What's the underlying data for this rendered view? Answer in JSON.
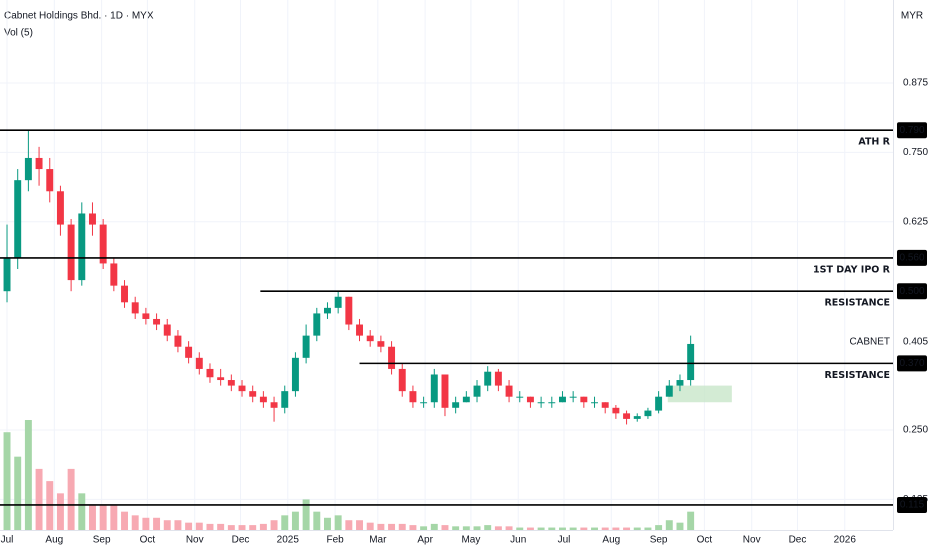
{
  "chart_data": {
    "type": "candlestick",
    "title": "Cabnet Holdings Bhd. · 1D · MYX",
    "subtitle": "Vol (5)",
    "currency": "MYR",
    "colors": {
      "up": "#089981",
      "down": "#f23645",
      "up_volume": "#a5d6a7",
      "down_volume": "#f7a9b2"
    },
    "x": [
      0,
      7,
      14,
      21,
      28,
      35,
      42,
      49,
      56,
      63,
      70,
      77,
      84,
      91,
      98,
      105,
      112,
      119,
      126,
      133,
      140,
      147,
      154,
      161,
      168,
      175,
      182,
      189,
      196,
      203,
      210,
      217,
      224,
      231,
      238,
      245,
      252,
      259,
      266,
      273,
      280,
      287,
      294,
      301,
      308,
      315,
      322,
      329,
      336,
      343,
      350,
      357,
      364,
      371,
      378,
      385,
      392,
      399,
      406,
      413,
      420,
      427,
      434,
      441,
      448
    ],
    "open": [
      0.5,
      0.56,
      0.7,
      0.74,
      0.72,
      0.68,
      0.62,
      0.52,
      0.64,
      0.62,
      0.55,
      0.51,
      0.48,
      0.46,
      0.45,
      0.44,
      0.42,
      0.4,
      0.38,
      0.36,
      0.345,
      0.34,
      0.33,
      0.32,
      0.31,
      0.3,
      0.29,
      0.32,
      0.38,
      0.42,
      0.46,
      0.47,
      0.49,
      0.44,
      0.42,
      0.41,
      0.4,
      0.36,
      0.32,
      0.3,
      0.3,
      0.35,
      0.29,
      0.3,
      0.31,
      0.33,
      0.355,
      0.33,
      0.31,
      0.31,
      0.3,
      0.3,
      0.3,
      0.31,
      0.31,
      0.3,
      0.3,
      0.29,
      0.28,
      0.27,
      0.275,
      0.285,
      0.31,
      0.33,
      0.34
    ],
    "high": [
      0.62,
      0.72,
      0.79,
      0.76,
      0.74,
      0.69,
      0.63,
      0.66,
      0.66,
      0.63,
      0.56,
      0.52,
      0.49,
      0.47,
      0.46,
      0.45,
      0.43,
      0.41,
      0.39,
      0.37,
      0.36,
      0.35,
      0.34,
      0.33,
      0.32,
      0.31,
      0.33,
      0.39,
      0.44,
      0.47,
      0.48,
      0.5,
      0.49,
      0.45,
      0.43,
      0.42,
      0.41,
      0.37,
      0.33,
      0.31,
      0.36,
      0.35,
      0.31,
      0.32,
      0.34,
      0.365,
      0.36,
      0.34,
      0.32,
      0.31,
      0.31,
      0.31,
      0.32,
      0.32,
      0.31,
      0.31,
      0.3,
      0.295,
      0.285,
      0.28,
      0.29,
      0.32,
      0.34,
      0.35,
      0.42
    ],
    "low": [
      0.48,
      0.54,
      0.68,
      0.69,
      0.66,
      0.6,
      0.5,
      0.51,
      0.6,
      0.54,
      0.5,
      0.47,
      0.45,
      0.44,
      0.43,
      0.41,
      0.39,
      0.37,
      0.35,
      0.335,
      0.33,
      0.32,
      0.31,
      0.3,
      0.29,
      0.265,
      0.28,
      0.31,
      0.37,
      0.41,
      0.45,
      0.46,
      0.43,
      0.41,
      0.4,
      0.39,
      0.35,
      0.31,
      0.29,
      0.29,
      0.29,
      0.275,
      0.28,
      0.3,
      0.3,
      0.32,
      0.32,
      0.3,
      0.3,
      0.29,
      0.29,
      0.29,
      0.3,
      0.3,
      0.29,
      0.29,
      0.28,
      0.27,
      0.26,
      0.265,
      0.27,
      0.28,
      0.31,
      0.32,
      0.33
    ],
    "close": [
      0.56,
      0.7,
      0.74,
      0.72,
      0.68,
      0.62,
      0.52,
      0.64,
      0.62,
      0.55,
      0.51,
      0.48,
      0.46,
      0.45,
      0.44,
      0.42,
      0.4,
      0.38,
      0.36,
      0.345,
      0.34,
      0.33,
      0.32,
      0.31,
      0.3,
      0.29,
      0.32,
      0.38,
      0.42,
      0.46,
      0.47,
      0.49,
      0.44,
      0.42,
      0.41,
      0.4,
      0.36,
      0.32,
      0.3,
      0.3,
      0.35,
      0.29,
      0.3,
      0.31,
      0.33,
      0.355,
      0.33,
      0.31,
      0.31,
      0.3,
      0.3,
      0.3,
      0.31,
      0.31,
      0.3,
      0.3,
      0.29,
      0.28,
      0.27,
      0.275,
      0.285,
      0.31,
      0.33,
      0.34,
      0.405
    ],
    "volume": [
      8,
      6,
      9,
      5,
      4,
      3,
      5,
      3,
      2,
      2,
      2,
      1.5,
      1.2,
      1,
      1,
      0.8,
      0.8,
      0.6,
      0.6,
      0.5,
      0.5,
      0.4,
      0.4,
      0.4,
      0.5,
      0.8,
      1.2,
      1.5,
      2.5,
      1.5,
      1,
      1.2,
      0.8,
      0.8,
      0.6,
      0.5,
      0.5,
      0.5,
      0.4,
      0.3,
      0.5,
      0.4,
      0.3,
      0.3,
      0.3,
      0.4,
      0.3,
      0.3,
      0.2,
      0.2,
      0.2,
      0.2,
      0.2,
      0.2,
      0.2,
      0.2,
      0.2,
      0.2,
      0.2,
      0.2,
      0.2,
      0.4,
      0.8,
      0.6,
      1.5
    ],
    "xlim": [
      -4.6,
      580.6
    ],
    "ylim": [
      0.0699,
      1.0245
    ],
    "xticks": [
      {
        "value": 0,
        "label": "Jul"
      },
      {
        "value": 31,
        "label": "Aug"
      },
      {
        "value": 62,
        "label": "Sep"
      },
      {
        "value": 92,
        "label": "Oct"
      },
      {
        "value": 123,
        "label": "Nov"
      },
      {
        "value": 153,
        "label": "Dec"
      },
      {
        "value": 184,
        "label": "2025"
      },
      {
        "value": 215,
        "label": "Feb"
      },
      {
        "value": 243,
        "label": "Mar"
      },
      {
        "value": 274,
        "label": "Apr"
      },
      {
        "value": 304,
        "label": "May"
      },
      {
        "value": 335,
        "label": "Jun"
      },
      {
        "value": 365,
        "label": "Jul"
      },
      {
        "value": 396,
        "label": "Aug"
      },
      {
        "value": 427,
        "label": "Sep"
      },
      {
        "value": 457,
        "label": "Oct"
      },
      {
        "value": 488,
        "label": "Nov"
      },
      {
        "value": 518,
        "label": "Dec"
      },
      {
        "value": 549,
        "label": "2026"
      }
    ],
    "yticks": [
      0.875,
      {
        "value": 0.75,
        "label": "0.750"
      },
      0.625,
      {
        "value": 0.25,
        "label": "0.250"
      },
      0.125
    ],
    "grid": true,
    "levels": [
      {
        "name": "ATH  R",
        "value": 0.79,
        "label": "0.790"
      },
      {
        "name": "1ST DAY IPO  R",
        "value": 0.56,
        "label": "0.560"
      },
      {
        "name": "RESISTANCE",
        "value": 0.5,
        "label": "0.500",
        "x_start": 166
      },
      {
        "name": "RESISTANCE",
        "value": 0.37,
        "label": "0.370",
        "x_start": 231
      },
      {
        "value": 0.115,
        "label": "0.115"
      }
    ],
    "last": {
      "name": "CABNET",
      "value": 0.405
    },
    "zone": {
      "x": [
        433,
        475
      ],
      "y": [
        0.3,
        0.33
      ],
      "color": "#c8e6c9"
    }
  }
}
